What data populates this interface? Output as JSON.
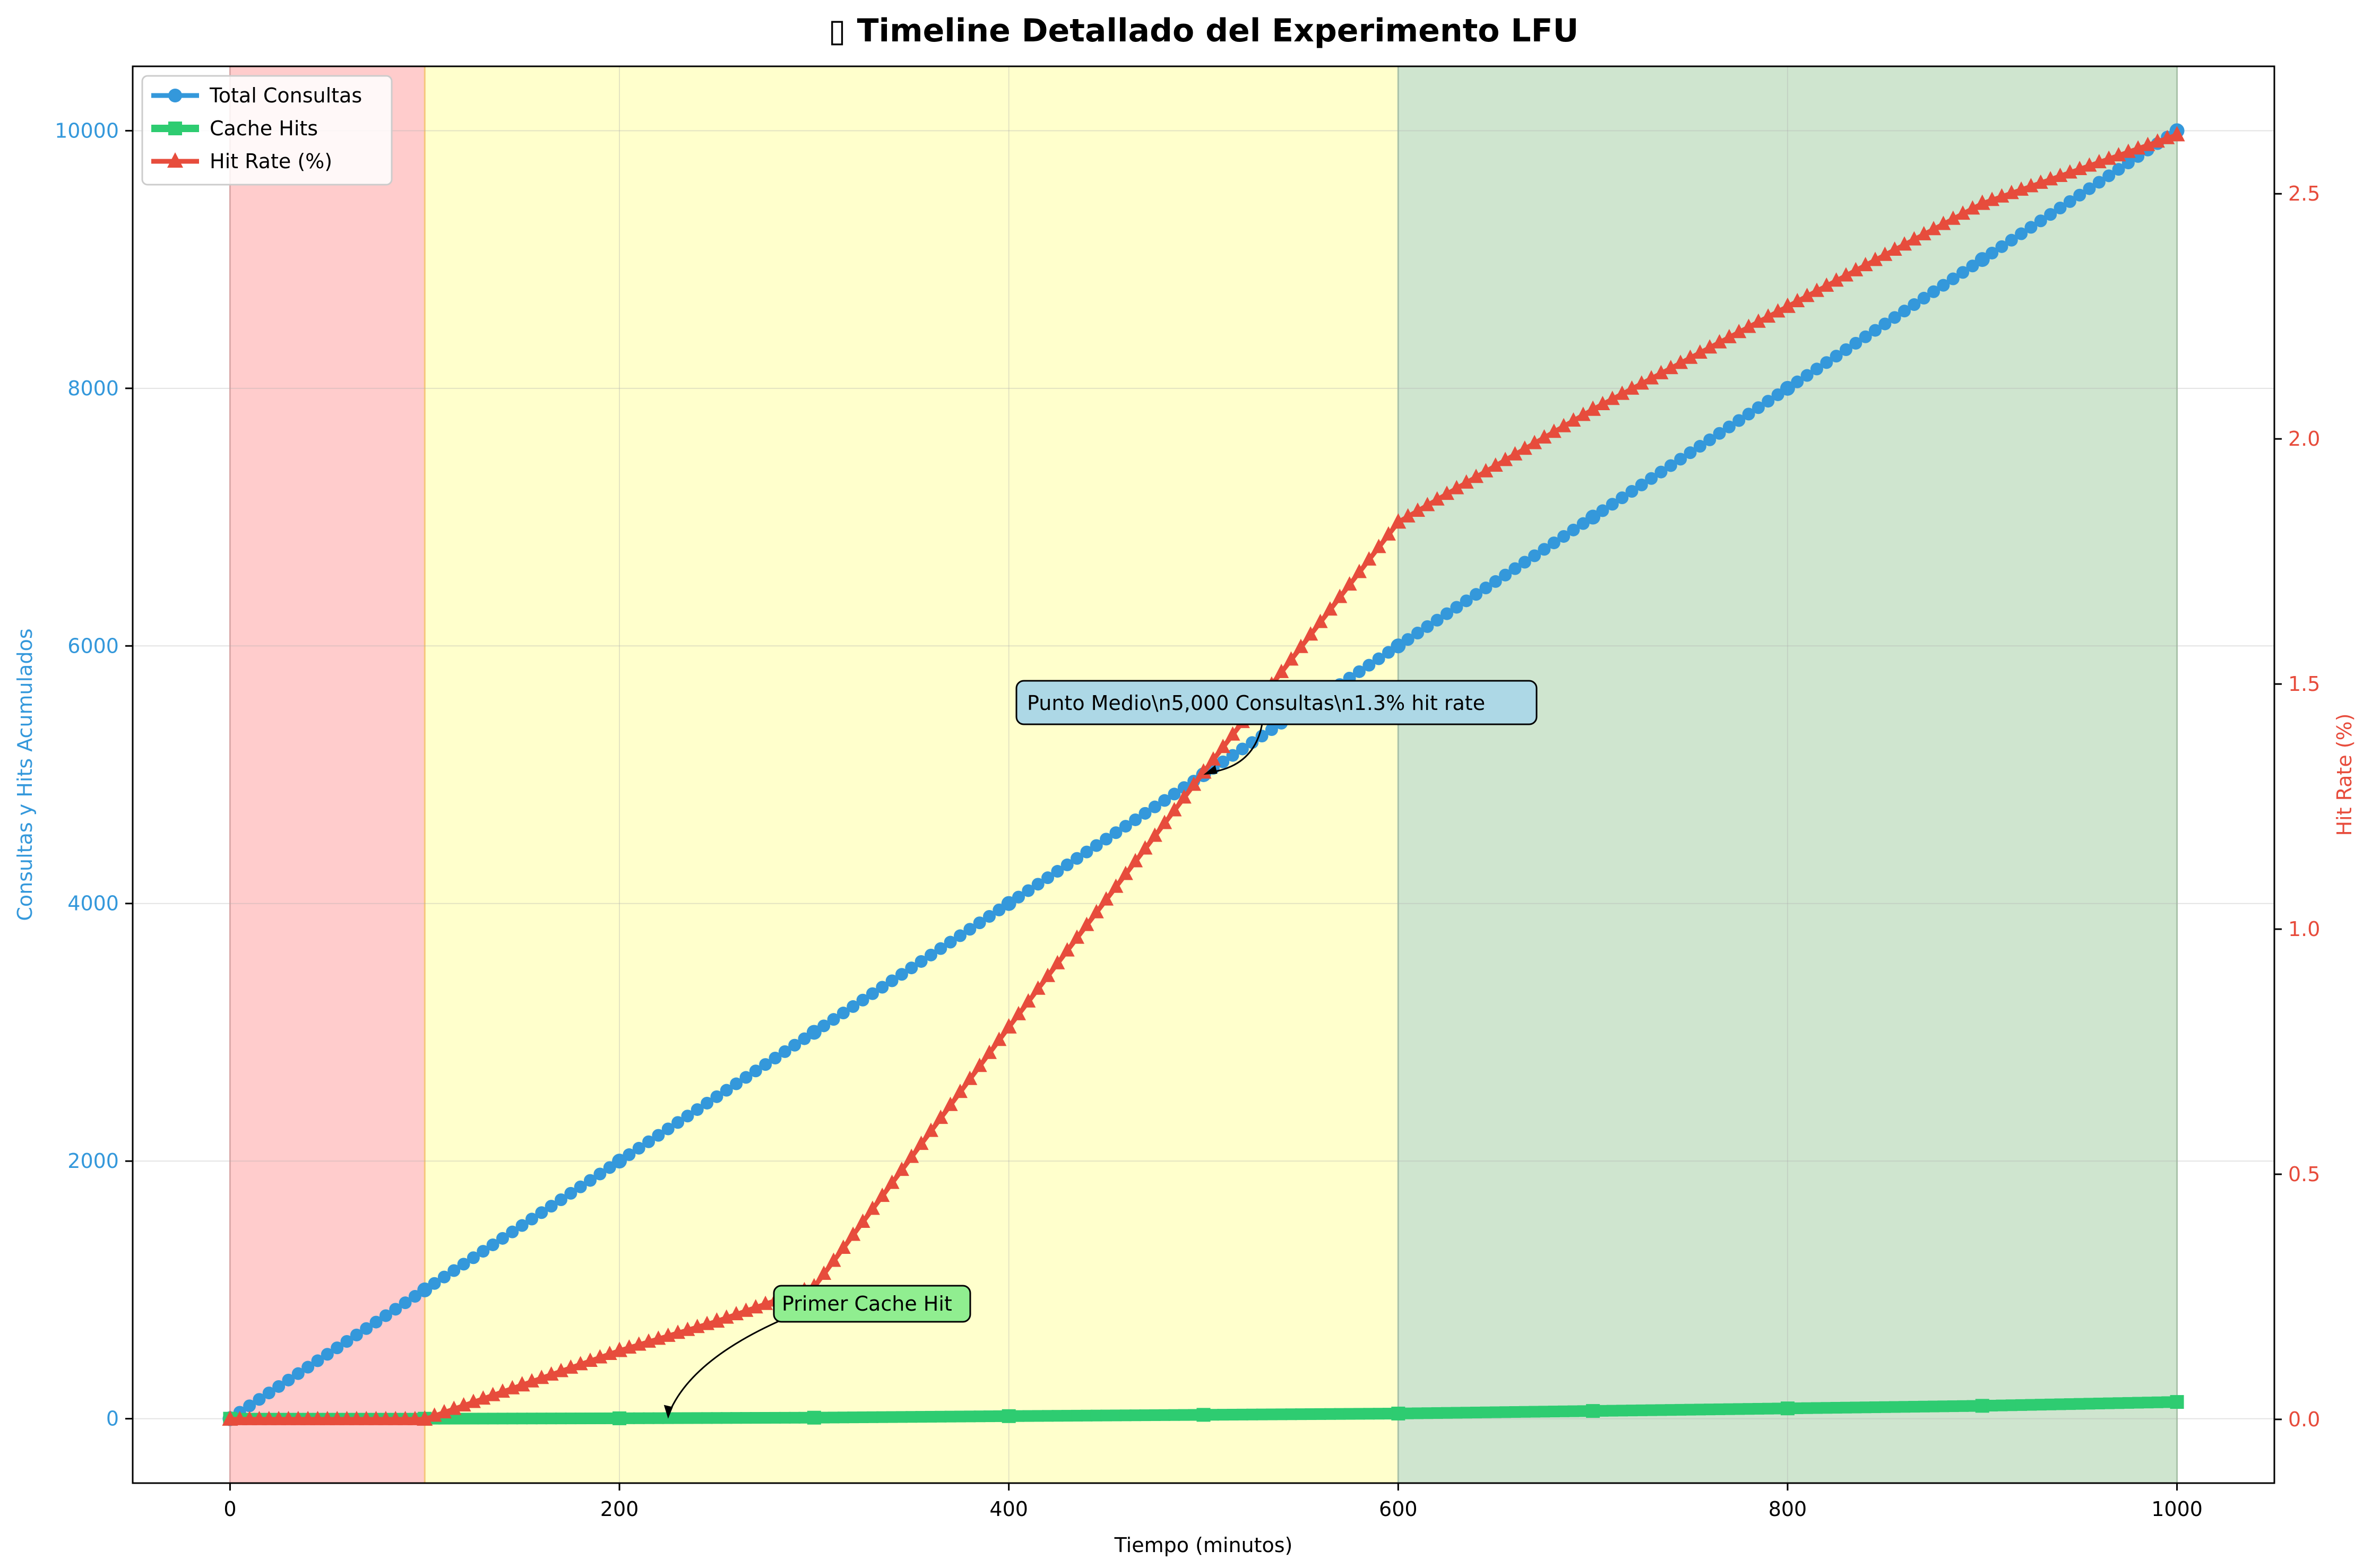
{
  "chart_data": {
    "type": "line",
    "title": "▯ Timeline Detallado del Experimento LFU",
    "xlabel": "Tiempo (minutos)",
    "ylabel_left": "Consultas y Hits Acumulados",
    "ylabel_right": "Hit Rate (%)",
    "xlim": [
      -50,
      1050
    ],
    "ylim_left": [
      -500,
      10500
    ],
    "ylim_right": [
      -0.13,
      2.76
    ],
    "x_ticks": [
      0,
      200,
      400,
      600,
      800,
      1000
    ],
    "y_left_ticks": [
      0,
      2000,
      4000,
      6000,
      8000,
      10000
    ],
    "y_right_ticks": [
      0.0,
      0.5,
      1.0,
      1.5,
      2.0,
      2.5
    ],
    "y_right_tick_labels": [
      "0.0",
      "0.5",
      "1.0",
      "1.5",
      "2.0",
      "2.5"
    ],
    "grid": true,
    "legend_position": "top-left",
    "phases": [
      {
        "start": 0,
        "end": 100,
        "color": "#ffcccc"
      },
      {
        "start": 100,
        "end": 600,
        "color": "#ffffcc"
      },
      {
        "start": 600,
        "end": 1000,
        "color": "#cfe5cf"
      }
    ],
    "series": [
      {
        "name": "Total Consultas",
        "axis": "left",
        "color": "#3498db",
        "marker": "circle",
        "x": [
          0,
          100,
          200,
          300,
          400,
          500,
          600,
          700,
          800,
          900,
          1000
        ],
        "y": [
          0,
          1000,
          2000,
          3000,
          4000,
          5000,
          6000,
          7000,
          8000,
          9000,
          10000
        ]
      },
      {
        "name": "Cache Hits",
        "axis": "left",
        "color": "#2ecc71",
        "marker": "square",
        "x": [
          0,
          100,
          200,
          300,
          400,
          500,
          600,
          700,
          800,
          900,
          1000
        ],
        "y": [
          0,
          0,
          3,
          8,
          20,
          30,
          40,
          60,
          80,
          100,
          130
        ]
      },
      {
        "name": "Hit Rate (%)",
        "axis": "right",
        "color": "#e74c3c",
        "marker": "triangle",
        "x": [
          0,
          100,
          150,
          200,
          250,
          300,
          400,
          500,
          600,
          700,
          800,
          900,
          1000
        ],
        "y": [
          0.0,
          0.0,
          0.07,
          0.14,
          0.2,
          0.27,
          0.8,
          1.32,
          1.83,
          2.06,
          2.27,
          2.48,
          2.62
        ]
      }
    ],
    "annotations": [
      {
        "text": "Punto Medio\\n5,000 Consultas\\n1.3% hit rate",
        "x": 500,
        "y": 5000,
        "box_color": "#add8e6"
      },
      {
        "text": "Primer Cache Hit",
        "x": 225,
        "y": 0,
        "box_color": "#90ee90"
      }
    ]
  }
}
